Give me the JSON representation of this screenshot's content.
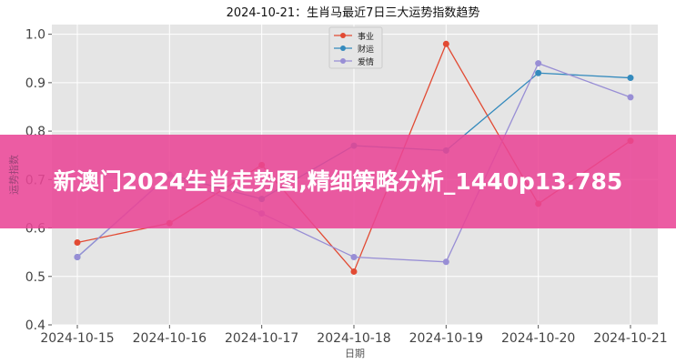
{
  "chart_data": {
    "type": "line",
    "title": "2024-10-21：生肖马最近7日三大运势指数趋势",
    "xlabel": "日期",
    "ylabel": "运势指数",
    "categories": [
      "2024-10-15",
      "2024-10-16",
      "2024-10-17",
      "2024-10-18",
      "2024-10-19",
      "2024-10-20",
      "2024-10-21"
    ],
    "ylim": [
      0.4,
      1.02
    ],
    "yticks": [
      "0.4",
      "0.5",
      "0.6",
      "0.7",
      "0.8",
      "0.9",
      "1.0"
    ],
    "grid": true,
    "legend": "top-center",
    "series": [
      {
        "name": "事业",
        "color": "#e24a33",
        "values": [
          0.57,
          0.61,
          0.73,
          0.51,
          0.98,
          0.65,
          0.78
        ]
      },
      {
        "name": "财运",
        "color": "#348abd",
        "values": [
          0.54,
          0.71,
          0.66,
          0.77,
          0.76,
          0.92,
          0.91
        ]
      },
      {
        "name": "爱情",
        "color": "#988ed5",
        "values": [
          0.54,
          0.71,
          0.63,
          0.54,
          0.53,
          0.94,
          0.87
        ]
      }
    ]
  },
  "banner": {
    "text": "新澳门2024生肖走势图,精细策略分析_1440p13.785"
  }
}
